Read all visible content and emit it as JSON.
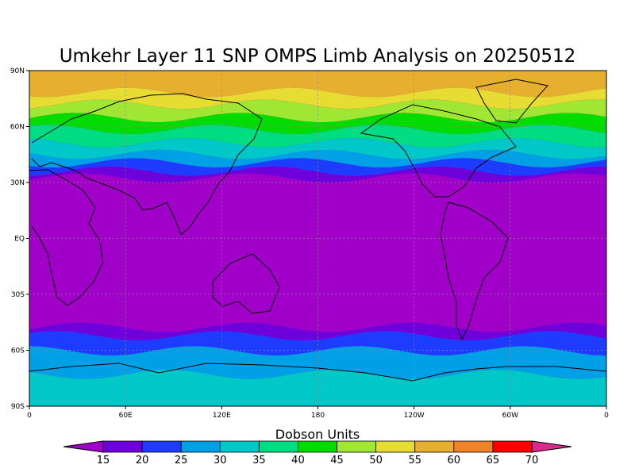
{
  "chart_data": {
    "type": "heatmap",
    "title": "Umkehr Layer 11 SNP OMPS Limb Analysis on 20250512",
    "colorbar_title": "Dobson Units",
    "x_ticks": [
      "0",
      "60E",
      "120E",
      "180",
      "120W",
      "60W",
      "0"
    ],
    "y_ticks": [
      "90N",
      "60N",
      "30N",
      "EQ",
      "30S",
      "60S",
      "90S"
    ],
    "grid": true,
    "legend": "bottom",
    "levels": [
      15,
      20,
      25,
      30,
      35,
      40,
      45,
      50,
      55,
      60,
      65,
      70
    ],
    "colors": [
      "#a000c8",
      "#6e00dc",
      "#1e3cff",
      "#00a0e6",
      "#00c8c8",
      "#00dc82",
      "#00dc00",
      "#a0e632",
      "#e6dc32",
      "#e6af2d",
      "#f08228",
      "#fa0000",
      "#dc2a8c"
    ]
  }
}
